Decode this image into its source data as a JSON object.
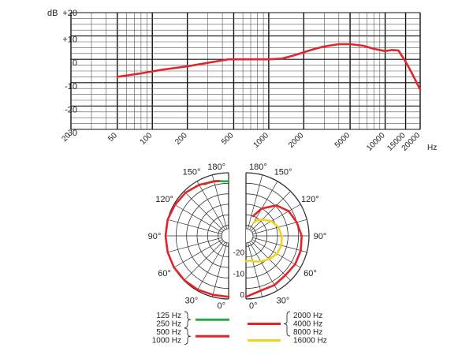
{
  "chart_data": [
    {
      "type": "line",
      "title": "",
      "ylabel": "dB",
      "xlabel": "Hz",
      "x_scale": "log",
      "ylim": [
        -30,
        20
      ],
      "xlim": [
        20,
        20000
      ],
      "grid": true,
      "y_ticks": [
        {
          "value": 20,
          "label": "+20"
        },
        {
          "value": 10,
          "label": "+10"
        },
        {
          "value": 0,
          "label": "0"
        },
        {
          "value": -10,
          "label": "-10"
        },
        {
          "value": -20,
          "label": "-20"
        },
        {
          "value": -30,
          "label": "-30"
        }
      ],
      "x_ticks": [
        {
          "value": 20,
          "label": "20"
        },
        {
          "value": 50,
          "label": "50"
        },
        {
          "value": 100,
          "label": "100"
        },
        {
          "value": 200,
          "label": "200"
        },
        {
          "value": 500,
          "label": "500"
        },
        {
          "value": 1000,
          "label": "1000"
        },
        {
          "value": 2000,
          "label": "2000"
        },
        {
          "value": 5000,
          "label": "5000"
        },
        {
          "value": 10000,
          "label": "10000"
        },
        {
          "value": 15000,
          "label": "15000"
        },
        {
          "value": 20000,
          "label": "20000"
        }
      ],
      "series": [
        {
          "color": "#e0262b",
          "x": [
            50,
            80,
            120,
            200,
            300,
            450,
            600,
            1000,
            1300,
            1600,
            2000,
            2500,
            3000,
            4000,
            5000,
            6500,
            8000,
            10000,
            11500,
            13000,
            15000,
            17000,
            20000
          ],
          "y": [
            -7.5,
            -6,
            -4.5,
            -3,
            -1.5,
            0,
            0,
            0,
            0.3,
            1.5,
            3,
            4.5,
            5.5,
            6.5,
            6.5,
            5.8,
            4.5,
            3.5,
            4,
            3.8,
            -1,
            -6,
            -13
          ]
        }
      ]
    },
    {
      "type": "polar",
      "rlim": [
        -30,
        0
      ],
      "r_ticks": [
        {
          "value": -20,
          "label": "-20"
        },
        {
          "value": -10,
          "label": "-10"
        },
        {
          "value": 0,
          "label": "0"
        }
      ],
      "angle_labels_left": [
        "180°",
        "150°",
        "120°",
        "90°",
        "60°",
        "30°",
        "0°"
      ],
      "angle_labels_right": [
        "180°",
        "150°",
        "120°",
        "90°",
        "60°",
        "30°",
        "0°"
      ],
      "legend": {
        "left_groups": [
          {
            "labels": [
              "125 Hz",
              "250 Hz"
            ],
            "color": "#2aa847"
          },
          {
            "labels": [
              "500 Hz",
              "1000 Hz"
            ],
            "color": "#e0262b"
          }
        ],
        "right_groups": [
          {
            "labels": [
              "2000 Hz",
              "4000 Hz",
              "8000 Hz"
            ],
            "color": "#e0262b"
          },
          {
            "labels": [
              "16000 Hz"
            ],
            "color": "#f2d21b"
          }
        ]
      },
      "series": [
        {
          "side": "left",
          "color": "#2aa847",
          "angle_deg": [
            155,
            160,
            165,
            170,
            175,
            180
          ],
          "r_db": [
            -3,
            -3,
            -3,
            -3.5,
            -4,
            -4
          ]
        },
        {
          "side": "left",
          "color": "#e0262b",
          "angle_deg": [
            0,
            15,
            30,
            45,
            60,
            75,
            90,
            105,
            120,
            135,
            150,
            165,
            170
          ],
          "r_db": [
            -1,
            -1,
            -0.5,
            -0.2,
            0,
            0,
            0,
            0,
            -0.5,
            -1,
            -2,
            -3.2,
            -3.5
          ]
        },
        {
          "side": "right",
          "color": "#e0262b",
          "angle_deg": [
            0,
            15,
            30,
            45,
            60,
            75,
            90,
            105,
            120,
            135,
            150,
            160
          ],
          "r_db": [
            -1,
            -3,
            -3,
            -3.5,
            -3,
            -3,
            -3.5,
            -5,
            -6.5,
            -9.5,
            -15,
            -20
          ]
        },
        {
          "side": "right",
          "color": "#f2d21b",
          "angle_deg": [
            0,
            10,
            20,
            30,
            40,
            50,
            60,
            75,
            90,
            105,
            120,
            135,
            145,
            150
          ],
          "r_db": [
            -18,
            -18,
            -17,
            -16,
            -15,
            -14,
            -13,
            -12.5,
            -13,
            -14,
            -16,
            -19,
            -21,
            -23
          ]
        }
      ]
    }
  ]
}
